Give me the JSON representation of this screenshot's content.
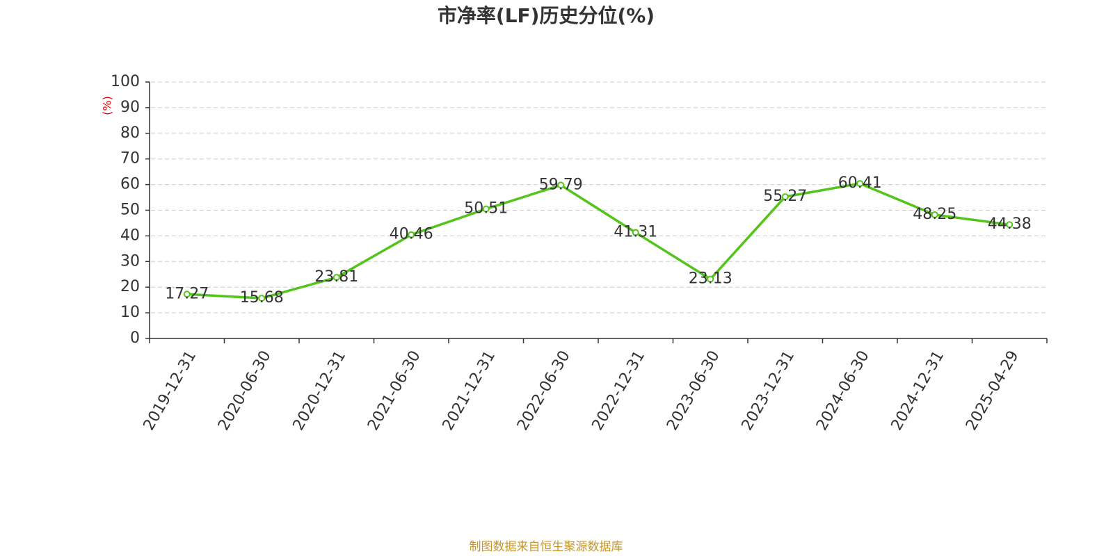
{
  "chart_data": {
    "type": "line",
    "title": "市净率(LF)历史分位(%)",
    "y_label": "(%)",
    "source": "制图数据来自恒生聚源数据库",
    "categories": [
      "2019-12-31",
      "2020-06-30",
      "2020-12-31",
      "2021-06-30",
      "2021-12-31",
      "2022-06-30",
      "2022-12-31",
      "2023-06-30",
      "2023-12-31",
      "2024-06-30",
      "2024-12-31",
      "2025-04-29"
    ],
    "values": [
      17.27,
      15.68,
      23.81,
      40.46,
      50.51,
      59.79,
      41.31,
      23.13,
      55.27,
      60.41,
      48.25,
      44.38
    ],
    "color": "#52c41a",
    "ylim": [
      0,
      100
    ],
    "yticks": [
      0,
      10,
      20,
      30,
      40,
      50,
      60,
      70,
      80,
      90,
      100
    ],
    "grid": true
  }
}
